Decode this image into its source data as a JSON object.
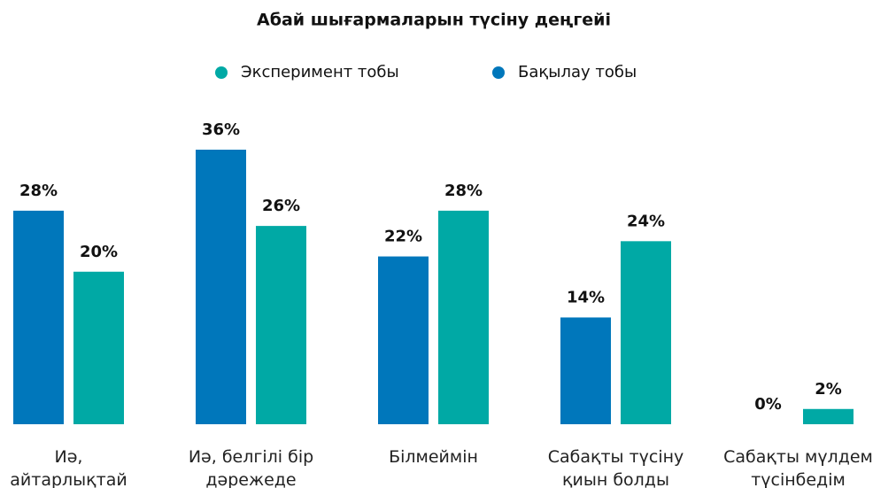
{
  "chart_data": {
    "type": "bar",
    "title": "Абай шығармаларын түсіну деңгейі",
    "categories": [
      "Иә, айтарлықтай",
      "Иә, белгілі бір дәрежеде",
      "Білмеймін",
      "Сабақты түсіну қиын болды",
      "Сабақты мүлдем түсінбедім"
    ],
    "series": [
      {
        "name": "Эксперимент тобы",
        "color": "#00a9a5",
        "values": [
          20,
          26,
          28,
          24,
          2
        ],
        "value_labels": [
          "20%",
          "26%",
          "28%",
          "24%",
          "2%"
        ]
      },
      {
        "name": "Бақылау тобы",
        "color": "#0077bb",
        "values": [
          28,
          36,
          22,
          14,
          0
        ],
        "value_labels": [
          "28%",
          "36%",
          "22%",
          "14%",
          "0%"
        ]
      }
    ]
  }
}
